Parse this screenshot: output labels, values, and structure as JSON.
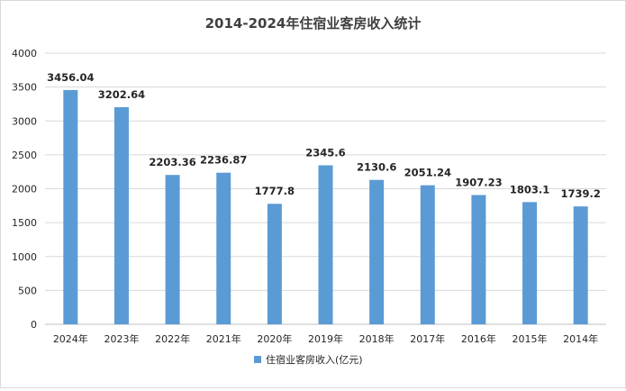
{
  "chart_data": {
    "type": "bar",
    "title": "2014-2024年住宿业客房收入统计",
    "categories": [
      "2024年",
      "2023年",
      "2022年",
      "2021年",
      "2020年",
      "2019年",
      "2018年",
      "2017年",
      "2016年",
      "2015年",
      "2014年"
    ],
    "series": [
      {
        "name": "住宿业客房收入(亿元)",
        "values": [
          3456.04,
          3202.64,
          2203.36,
          2236.87,
          1777.8,
          2345.6,
          2130.6,
          2051.24,
          1907.23,
          1803.1,
          1739.2
        ],
        "labels": [
          "3456.04",
          "3202.64",
          "2203.36",
          "2236.87",
          "1777.8",
          "2345.6",
          "2130.6",
          "2051.24",
          "1907.23",
          "1803.1",
          "1739.2"
        ],
        "color": "#5b9bd5"
      }
    ],
    "ylim": [
      0,
      4000
    ],
    "yticks": [
      0,
      500,
      1000,
      1500,
      2000,
      2500,
      3000,
      3500,
      4000
    ],
    "grid": true,
    "legend_position": "bottom",
    "xlabel": "",
    "ylabel": ""
  },
  "colors": {
    "bar": "#5b9bd5",
    "grid": "#d9d9d9",
    "axis": "#bfbfbf"
  }
}
